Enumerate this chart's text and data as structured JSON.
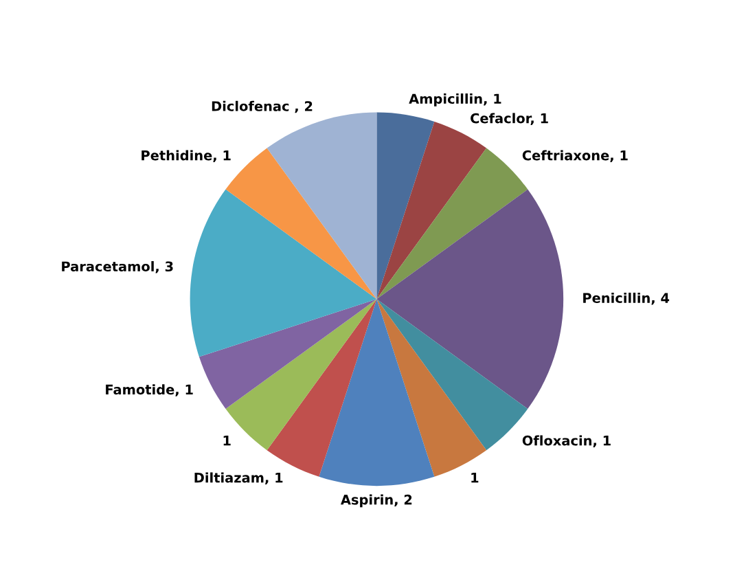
{
  "chart_data": {
    "type": "pie",
    "categories": [
      "Ampicillin, 1",
      "Cefaclor, 1",
      "Ceftriaxone, 1",
      "Penicillin, 4",
      "Ofloxacin, 1",
      null,
      "Aspirin, 2",
      "Diltiazam, 1",
      null,
      "Famotide, 1",
      "Paracetamol, 3",
      "Pethidine, 1",
      "Diclofenac , 2"
    ],
    "values": [
      1,
      1,
      1,
      4,
      1,
      1,
      2,
      1,
      1,
      1,
      3,
      1,
      2
    ],
    "value_labels": [
      null,
      null,
      null,
      null,
      null,
      "1",
      null,
      null,
      "1",
      null,
      null,
      null,
      null
    ],
    "colors": [
      "#4a6d9b",
      "#9b4443",
      "#7f9a52",
      "#6b5689",
      "#428e9f",
      "#c8783f",
      "#4f81bd",
      "#c0504d",
      "#9bbb59",
      "#8064a2",
      "#4bacc6",
      "#f79646",
      "#9fb3d3"
    ],
    "legend": false
  }
}
